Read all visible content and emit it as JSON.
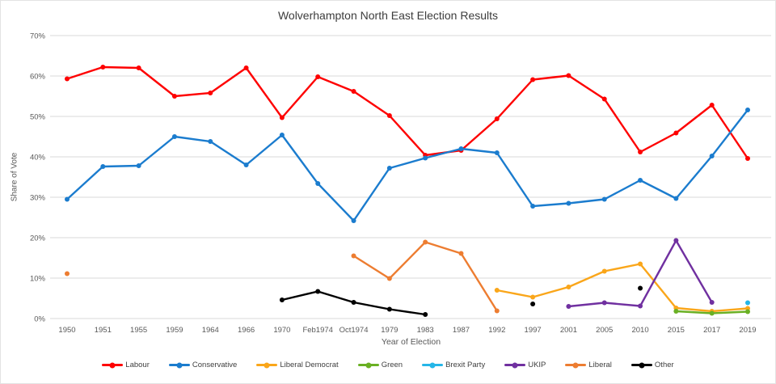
{
  "window": {
    "background": "#ffffff",
    "border_color": "#e3e3e3"
  },
  "styles": {
    "gridline": "#d9d9d9",
    "axis_text": "#595959",
    "title_text": "#3c3c3c",
    "legend_text": "#3f3f3f"
  },
  "chart_data": {
    "type": "line",
    "title": "Wolverhampton North East Election Results",
    "xlabel": "Year of Election",
    "ylabel": "Share of Vote",
    "ylim": [
      0,
      70
    ],
    "y_ticks": [
      0,
      10,
      20,
      30,
      40,
      50,
      60,
      70
    ],
    "y_tick_labels": [
      "0%",
      "10%",
      "20%",
      "30%",
      "40%",
      "50%",
      "60%",
      "70%"
    ],
    "grid": true,
    "legend_position": "bottom",
    "categories": [
      "1950",
      "1951",
      "1955",
      "1959",
      "1964",
      "1966",
      "1970",
      "Feb1974",
      "Oct1974",
      "1979",
      "1983",
      "1987",
      "1992",
      "1997",
      "2001",
      "2005",
      "2010",
      "2015",
      "2017",
      "2019"
    ],
    "series": [
      {
        "name": "Labour",
        "color": "#fe0000",
        "values": [
          59.3,
          62.2,
          62.0,
          55.0,
          55.8,
          62.0,
          49.7,
          59.8,
          56.2,
          50.2,
          40.4,
          41.6,
          49.4,
          59.1,
          60.1,
          54.3,
          41.2,
          45.9,
          52.8,
          39.6
        ]
      },
      {
        "name": "Conservative",
        "color": "#1b7cce",
        "values": [
          29.5,
          37.6,
          37.8,
          45.0,
          43.8,
          38.0,
          45.4,
          33.4,
          24.2,
          37.2,
          39.7,
          42.0,
          41.0,
          27.8,
          28.5,
          29.5,
          34.2,
          29.7,
          40.2,
          51.6
        ]
      },
      {
        "name": "Liberal Democrat",
        "color": "#faa61a",
        "values": [
          null,
          null,
          null,
          null,
          null,
          null,
          null,
          null,
          null,
          null,
          null,
          null,
          7.0,
          5.3,
          7.8,
          11.7,
          13.5,
          2.6,
          1.8,
          2.5
        ]
      },
      {
        "name": "Green",
        "color": "#6ab023",
        "values": [
          null,
          null,
          null,
          null,
          null,
          null,
          null,
          null,
          null,
          null,
          null,
          null,
          null,
          null,
          null,
          null,
          null,
          1.8,
          1.3,
          1.7
        ]
      },
      {
        "name": "Brexit Party",
        "color": "#25b6e8",
        "values": [
          null,
          null,
          null,
          null,
          null,
          null,
          null,
          null,
          null,
          null,
          null,
          null,
          null,
          null,
          null,
          null,
          null,
          null,
          null,
          3.9
        ]
      },
      {
        "name": "UKIP",
        "color": "#7030a0",
        "values": [
          null,
          null,
          null,
          null,
          null,
          null,
          null,
          null,
          null,
          null,
          null,
          null,
          null,
          null,
          3.0,
          3.9,
          3.1,
          19.3,
          4.0,
          null
        ]
      },
      {
        "name": "Liberal",
        "color": "#ed7d31",
        "values": [
          11.1,
          null,
          null,
          null,
          null,
          null,
          null,
          null,
          15.5,
          9.9,
          18.9,
          16.1,
          1.9,
          null,
          null,
          null,
          null,
          null,
          null,
          null
        ]
      },
      {
        "name": "Other",
        "color": "#000000",
        "values": [
          null,
          null,
          null,
          null,
          null,
          null,
          4.6,
          6.7,
          4.0,
          2.3,
          1.0,
          null,
          null,
          3.6,
          null,
          null,
          7.5,
          null,
          null,
          null
        ]
      }
    ]
  }
}
